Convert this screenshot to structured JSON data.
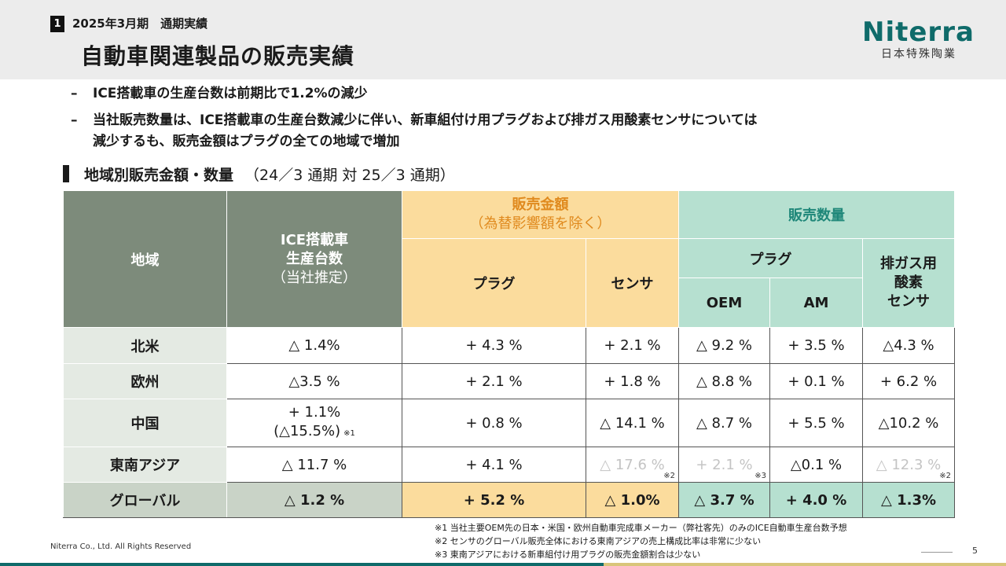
{
  "header": {
    "section_number": "1",
    "section_label": "2025年3月期　通期実績",
    "title": "自動車関連製品の販売実績"
  },
  "logo": {
    "wordmark": "Niterra",
    "company_jp": "日本特殊陶業",
    "brand_color": "#0f6b6a"
  },
  "bullets": [
    {
      "dash": "–",
      "text": "ICE搭載車の生産台数は前期比で1.2%の減少"
    },
    {
      "dash": "–",
      "text": "当社販売数量は、ICE搭載車の生産台数減少に伴い、新車組付け用プラグおよび排ガス用酸素センサについては\n減少するも、販売金額はプラグの全ての地域で増加"
    }
  ],
  "subheading": {
    "title": "地域別販売金額・数量",
    "period": "（24／3 通期 対 25／3 通期）"
  },
  "table": {
    "headers": {
      "region": "地域",
      "ice_line1": "ICE搭載車",
      "ice_line2": "生産台数",
      "ice_line3": "（当社推定）",
      "sales_amount": "販売金額",
      "sales_amount_note": "（為替影響額を除く）",
      "sales_volume": "販売数量",
      "plug": "プラグ",
      "sensor": "センサ",
      "vol_plug": "プラグ",
      "oem": "OEM",
      "am": "AM",
      "exhaust_line1": "排ガス用",
      "exhaust_line2": "酸素",
      "exhaust_line3": "センサ"
    },
    "rows": [
      {
        "region": "北米",
        "ice": "△ 1.4%",
        "plug": "+ 4.3 %",
        "sensor": "+ 2.1 %",
        "oem": "△ 9.2 %",
        "am": "+  3.5 %",
        "o2": "△4.3 %"
      },
      {
        "region": "欧州",
        "ice": "△3.5 %",
        "plug": "+ 2.1 %",
        "sensor": "+  1.8 %",
        "oem": "△ 8.8 %",
        "am": "+ 0.1 %",
        "o2": "+  6.2 %"
      },
      {
        "region": "中国",
        "ice": "+ 1.1%",
        "ice2": "(△15.5%)",
        "ice2_note": "※1",
        "plug": "+ 0.8 %",
        "sensor": "△ 14.1 %",
        "oem": "△ 8.7 %",
        "am": "+ 5.5 %",
        "o2": "△10.2 %"
      },
      {
        "region": "東南アジア",
        "ice": "△ 11.7 %",
        "plug": "+  4.1 %",
        "sensor": "△ 17.6 %",
        "sensor_note": "※2",
        "oem": "+  2.1 %",
        "oem_note": "※3",
        "am": "△0.1 %",
        "o2": "△ 12.3 %",
        "o2_note": "※2"
      }
    ],
    "global": {
      "region": "グローバル",
      "ice": "△ 1.2 %",
      "plug": "+ 5.2 %",
      "sensor": "△ 1.0%",
      "oem": "△ 3.7 %",
      "am": "+  4.0 %",
      "o2": "△ 1.3%"
    }
  },
  "footnotes": [
    "※1 当社主要OEM先の日本・米国・欧州自動車完成車メーカー（弊社客先）のみのICE自動車生産台数予想",
    "※2 センサのグローバル販売全体における東南アジアの売上構成比率は非常に少ない",
    "※3 東南アジアにおける新車組付け用プラグの販売金額割合は少ない"
  ],
  "footer": {
    "copyright": "Niterra Co., Ltd. All Rights Reserved",
    "page_number": "5"
  },
  "colors": {
    "header_gray": "#7d8b7b",
    "amount_yellow": "#fbdc9d",
    "volume_green": "#b6e0d0",
    "amount_title": "#e08a1e",
    "volume_title": "#1f8779"
  }
}
